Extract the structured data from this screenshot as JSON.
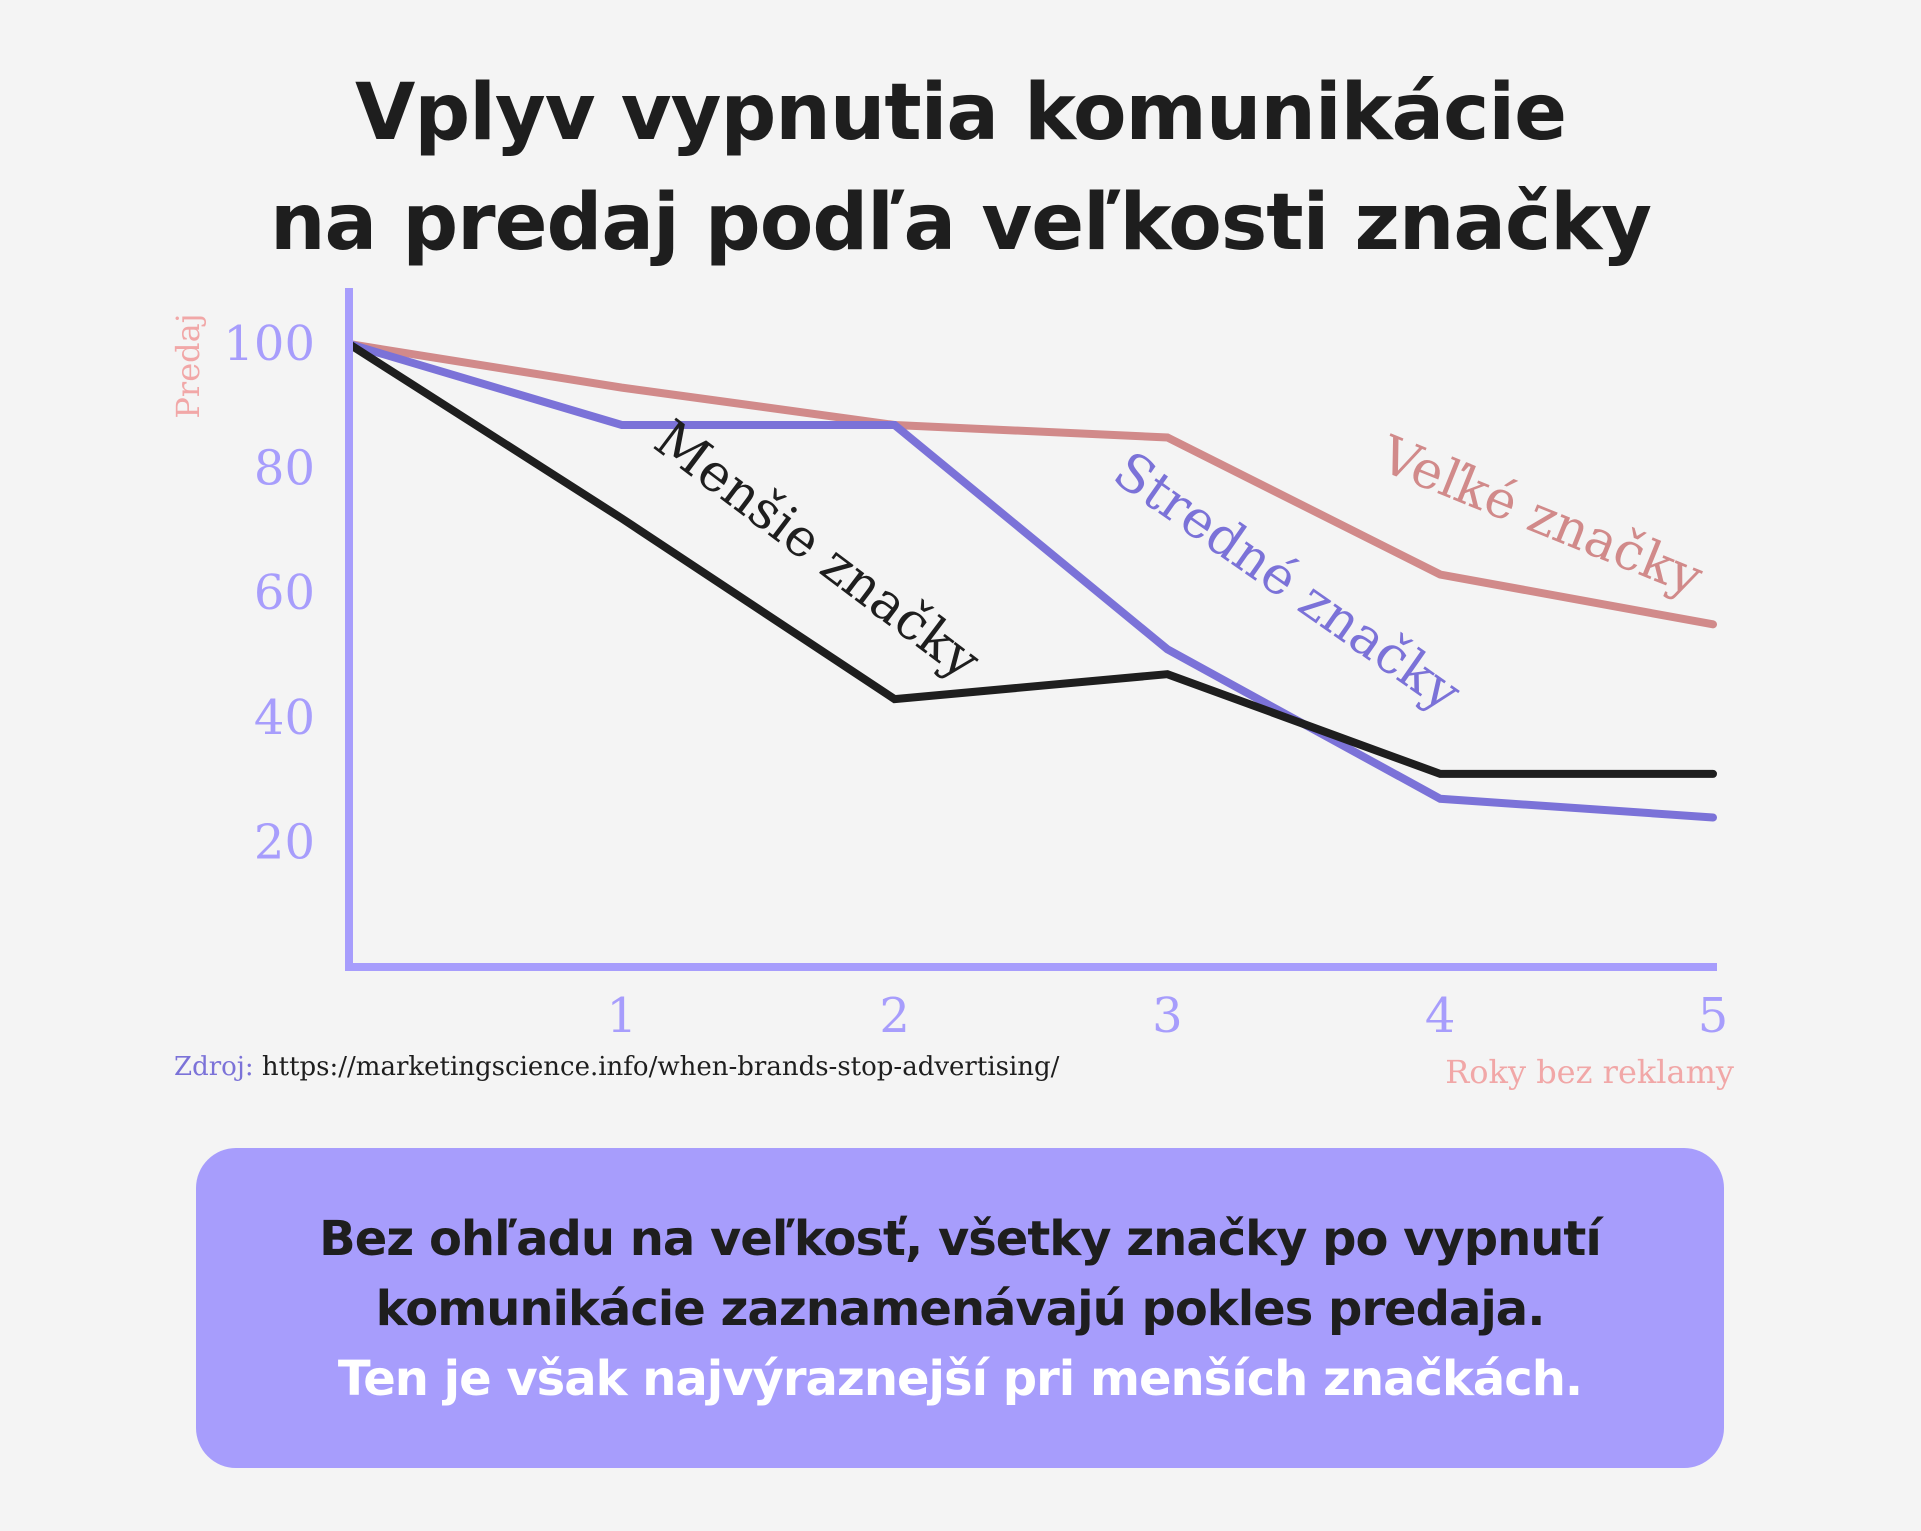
{
  "title": {
    "line1": "Vplyv vypnutia komunikácie",
    "line2": "na predaj podľa veľkosti značky"
  },
  "chart_data": {
    "type": "line",
    "x": [
      0,
      1,
      2,
      3,
      4,
      5
    ],
    "xticks": [
      "1",
      "2",
      "3",
      "4",
      "5"
    ],
    "yticks": [
      "20",
      "40",
      "60",
      "80",
      "100"
    ],
    "xlabel": "Roky bez reklamy",
    "ylabel": "Predaj",
    "xlim": [
      0,
      5
    ],
    "ylim": [
      0,
      110
    ],
    "grid": false,
    "legend": "inline labels",
    "series": [
      {
        "name": "Veľké značky",
        "values": [
          100,
          93,
          87,
          85,
          63,
          55
        ],
        "color": "#d18a8a"
      },
      {
        "name": "Stredné značky",
        "values": [
          100,
          87,
          87,
          51,
          27,
          24
        ],
        "color": "#7b72d8"
      },
      {
        "name": "Menšie značky",
        "values": [
          100,
          72,
          43,
          47,
          31,
          31
        ],
        "color": "#1e1e1e"
      }
    ],
    "colors": {
      "axis": "#a79dfc",
      "tick_labels": "#a79dfc",
      "axis_titles": "#f1a7a7"
    }
  },
  "source": {
    "label": "Zdroj:",
    "url": "https://marketingscience.info/when-brands-stop-advertising/"
  },
  "callout": {
    "line1": "Bez ohľadu na veľkosť, všetky značky po vypnutí",
    "line2": "komunikácie zaznamenávajú pokles predaja.",
    "line3": "Ten je však najvýraznejší pri menších značkách.",
    "background": "#a79dfc"
  }
}
